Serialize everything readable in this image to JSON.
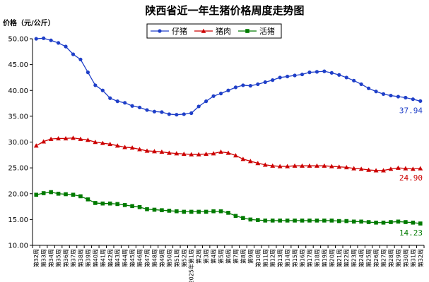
{
  "chart_data": {
    "type": "line",
    "title": "陕西省近一年生猪价格周度走势图",
    "ylabel": "价格（元/公斤）",
    "ylim": [
      10,
      50
    ],
    "yticks": [
      "10.00",
      "15.00",
      "20.00",
      "25.00",
      "30.00",
      "35.00",
      "40.00",
      "45.00",
      "50.00"
    ],
    "grid": false,
    "legend_position": "top-center",
    "categories": [
      "第32周",
      "第33周",
      "第34周",
      "第35周",
      "第36周",
      "第37周",
      "第38周",
      "第39周",
      "第40周",
      "第41周",
      "第42周",
      "第43周",
      "第44周",
      "第45周",
      "第46周",
      "第47周",
      "第48周",
      "第49周",
      "第50周",
      "第51周",
      "第52周",
      "2025年第1周",
      "第2周",
      "第3周",
      "第4周",
      "第5周",
      "第6周",
      "第7周",
      "第8周",
      "第9周",
      "第10周",
      "第11周",
      "第12周",
      "第13周",
      "第14周",
      "第15周",
      "第16周",
      "第17周",
      "第18周",
      "第19周",
      "第20周",
      "第21周",
      "第22周",
      "第23周",
      "第24周",
      "第25周",
      "第26周",
      "第27周",
      "第28周",
      "第29周",
      "第30周",
      "第31周",
      "第32周"
    ],
    "series": [
      {
        "name": "仔猪",
        "color": "#1f3fc8",
        "marker": "circle",
        "end_label": "37.94",
        "values": [
          50.0,
          50.1,
          49.7,
          49.2,
          48.5,
          47.0,
          46.0,
          43.5,
          41.0,
          40.0,
          38.5,
          37.9,
          37.6,
          37.0,
          36.7,
          36.2,
          35.9,
          35.8,
          35.4,
          35.3,
          35.4,
          35.6,
          36.9,
          37.9,
          38.9,
          39.4,
          40.0,
          40.6,
          41.0,
          40.9,
          41.2,
          41.6,
          42.0,
          42.5,
          42.7,
          42.9,
          43.1,
          43.5,
          43.6,
          43.7,
          43.4,
          43.0,
          42.5,
          41.9,
          41.2,
          40.4,
          39.8,
          39.3,
          39.0,
          38.8,
          38.6,
          38.3,
          37.94
        ]
      },
      {
        "name": "猪肉",
        "color": "#cc0000",
        "marker": "triangle",
        "end_label": "24.90",
        "values": [
          29.3,
          30.1,
          30.6,
          30.7,
          30.7,
          30.8,
          30.6,
          30.4,
          30.0,
          29.8,
          29.6,
          29.3,
          29.0,
          28.9,
          28.6,
          28.3,
          28.2,
          28.1,
          27.9,
          27.8,
          27.7,
          27.6,
          27.6,
          27.7,
          27.8,
          28.1,
          27.9,
          27.4,
          26.7,
          26.3,
          25.9,
          25.6,
          25.4,
          25.3,
          25.3,
          25.4,
          25.4,
          25.4,
          25.4,
          25.4,
          25.3,
          25.2,
          25.1,
          24.9,
          24.8,
          24.6,
          24.5,
          24.5,
          24.8,
          25.0,
          24.9,
          24.8,
          24.9
        ]
      },
      {
        "name": "活猪",
        "color": "#007a00",
        "marker": "square",
        "end_label": "14.23",
        "values": [
          19.8,
          20.1,
          20.3,
          20.0,
          19.9,
          19.8,
          19.5,
          18.9,
          18.2,
          18.1,
          18.1,
          18.0,
          17.8,
          17.6,
          17.4,
          17.0,
          16.9,
          16.8,
          16.7,
          16.6,
          16.5,
          16.5,
          16.5,
          16.5,
          16.6,
          16.6,
          16.3,
          15.7,
          15.3,
          15.0,
          14.9,
          14.8,
          14.8,
          14.8,
          14.8,
          14.8,
          14.8,
          14.8,
          14.8,
          14.8,
          14.8,
          14.7,
          14.7,
          14.6,
          14.6,
          14.5,
          14.4,
          14.4,
          14.5,
          14.6,
          14.5,
          14.4,
          14.23
        ]
      }
    ]
  }
}
